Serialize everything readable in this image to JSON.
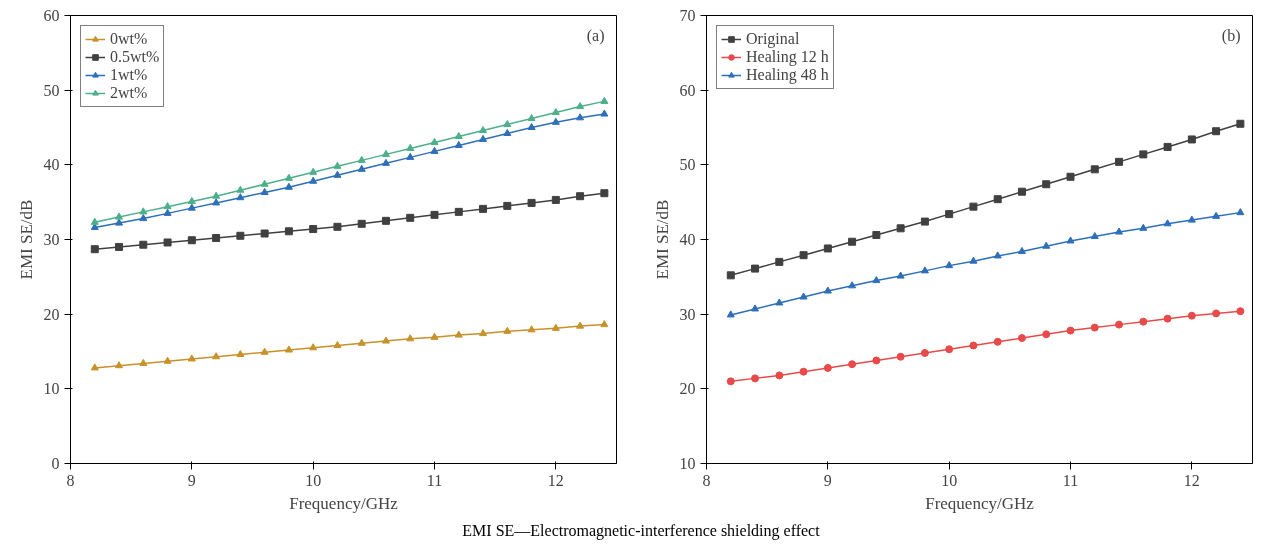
{
  "chart_data": [
    {
      "type": "line",
      "xlabel": "Frequency/GHz",
      "ylabel": "EMI SE/dB",
      "annotations": [
        "(a)"
      ],
      "xlim": [
        8,
        12.5
      ],
      "xticks": [
        8,
        9,
        10,
        11,
        12
      ],
      "ylim": [
        0,
        60
      ],
      "yticks": [
        0,
        10,
        20,
        30,
        40,
        50,
        60
      ],
      "grid": false,
      "legend": "top left",
      "x": [
        8.2,
        8.4,
        8.6,
        8.8,
        9.0,
        9.2,
        9.4,
        9.6,
        9.8,
        10.0,
        10.2,
        10.4,
        10.6,
        10.8,
        11.0,
        11.2,
        11.4,
        11.6,
        11.8,
        12.0,
        12.2,
        12.4
      ],
      "series": [
        {
          "name": "0wt%",
          "color": "#c8922a",
          "marker": "triangle",
          "values": [
            12.8,
            13.1,
            13.4,
            13.7,
            14.0,
            14.3,
            14.6,
            14.9,
            15.2,
            15.5,
            15.8,
            16.1,
            16.4,
            16.7,
            16.9,
            17.2,
            17.4,
            17.7,
            17.9,
            18.1,
            18.4,
            18.6
          ]
        },
        {
          "name": "0.5wt%",
          "color": "#404040",
          "marker": "square",
          "values": [
            28.7,
            29.0,
            29.3,
            29.6,
            29.9,
            30.2,
            30.5,
            30.8,
            31.1,
            31.4,
            31.7,
            32.1,
            32.5,
            32.9,
            33.3,
            33.7,
            34.1,
            34.5,
            34.9,
            35.3,
            35.8,
            36.2
          ]
        },
        {
          "name": "1wt%",
          "color": "#2e6fba",
          "marker": "triangle",
          "values": [
            31.6,
            32.2,
            32.8,
            33.5,
            34.2,
            34.9,
            35.6,
            36.3,
            37.0,
            37.8,
            38.6,
            39.4,
            40.2,
            41.0,
            41.8,
            42.6,
            43.4,
            44.2,
            45.0,
            45.7,
            46.3,
            46.8
          ]
        },
        {
          "name": "2wt%",
          "color": "#4cb08a",
          "marker": "triangle",
          "values": [
            32.3,
            33.0,
            33.7,
            34.4,
            35.1,
            35.8,
            36.6,
            37.4,
            38.2,
            39.0,
            39.8,
            40.6,
            41.4,
            42.2,
            43.0,
            43.8,
            44.6,
            45.4,
            46.2,
            47.0,
            47.8,
            48.5
          ]
        }
      ]
    },
    {
      "type": "line",
      "xlabel": "Frequency/GHz",
      "ylabel": "EMI SE/dB",
      "annotations": [
        "(b)",
        "EMI SE—Electromagnetic-interference shielding effect"
      ],
      "xlim": [
        8,
        12.5
      ],
      "xticks": [
        8,
        9,
        10,
        11,
        12
      ],
      "ylim": [
        10,
        70
      ],
      "yticks": [
        10,
        20,
        30,
        40,
        50,
        60,
        70
      ],
      "grid": false,
      "legend": "top left",
      "x": [
        8.2,
        8.4,
        8.6,
        8.8,
        9.0,
        9.2,
        9.4,
        9.6,
        9.8,
        10.0,
        10.2,
        10.4,
        10.6,
        10.8,
        11.0,
        11.2,
        11.4,
        11.6,
        11.8,
        12.0,
        12.2,
        12.4
      ],
      "series": [
        {
          "name": "Original",
          "color": "#404040",
          "marker": "square",
          "values": [
            35.2,
            36.1,
            37.0,
            37.9,
            38.8,
            39.7,
            40.6,
            41.5,
            42.4,
            43.4,
            44.4,
            45.4,
            46.4,
            47.4,
            48.4,
            49.4,
            50.4,
            51.4,
            52.4,
            53.4,
            54.5,
            55.5
          ]
        },
        {
          "name": "Healing 12 h",
          "color": "#e84a4a",
          "marker": "circle",
          "values": [
            21.0,
            21.4,
            21.8,
            22.3,
            22.8,
            23.3,
            23.8,
            24.3,
            24.8,
            25.3,
            25.8,
            26.3,
            26.8,
            27.3,
            27.8,
            28.2,
            28.6,
            29.0,
            29.4,
            29.8,
            30.1,
            30.4
          ]
        },
        {
          "name": "Healing 48 h",
          "color": "#2e6fba",
          "marker": "triangle",
          "values": [
            29.9,
            30.7,
            31.5,
            32.3,
            33.1,
            33.8,
            34.5,
            35.1,
            35.8,
            36.5,
            37.1,
            37.8,
            38.4,
            39.1,
            39.8,
            40.4,
            41.0,
            41.5,
            42.1,
            42.6,
            43.1,
            43.6
          ]
        }
      ]
    }
  ]
}
